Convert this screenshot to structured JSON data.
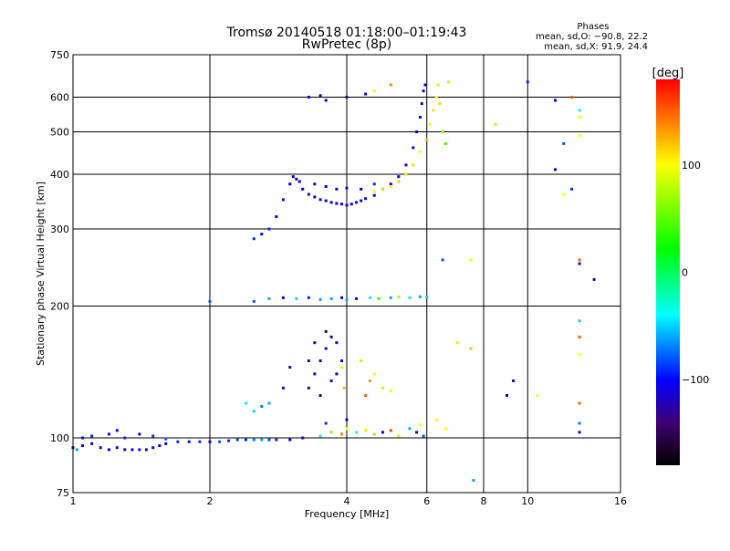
{
  "chart_data": {
    "type": "scatter",
    "title": "Tromsø 20140518 01:18:00–01:19:43",
    "subtitle": "RwPretec (8p)",
    "stats": {
      "heading": "Phases",
      "o_mode": "mean, sd,O: −90.8, 22.2",
      "x_mode": "mean, sd,X:  91.9, 24.4"
    },
    "xlabel": "Frequency [MHz]",
    "ylabel": "Stationary phase Virtual Height [km]",
    "xscale": "log",
    "yscale": "log",
    "xlim": [
      1,
      16
    ],
    "ylim": [
      75,
      750
    ],
    "xticks": [
      1,
      2,
      4,
      6,
      8,
      10,
      16
    ],
    "yticks": [
      75,
      100,
      200,
      300,
      400,
      500,
      600,
      750
    ],
    "xgrid": [
      2,
      4,
      6,
      8,
      10
    ],
    "ygrid": [
      100,
      200,
      300,
      400,
      500,
      600
    ],
    "colorbar": {
      "label": "[deg]",
      "range": [
        -180,
        180
      ],
      "ticks": [
        100,
        0,
        -100
      ]
    },
    "point_fields": [
      "frequency_mhz",
      "height_km",
      "phase_deg"
    ],
    "points": [
      [
        1.0,
        95,
        -110
      ],
      [
        1.02,
        94,
        -60
      ],
      [
        1.05,
        96,
        -110
      ],
      [
        1.1,
        97,
        -110
      ],
      [
        1.15,
        95,
        -110
      ],
      [
        1.2,
        94,
        -110
      ],
      [
        1.25,
        95,
        -110
      ],
      [
        1.3,
        94,
        -110
      ],
      [
        1.35,
        94,
        -110
      ],
      [
        1.4,
        94,
        -110
      ],
      [
        1.45,
        94,
        -110
      ],
      [
        1.5,
        95,
        -110
      ],
      [
        1.55,
        96,
        -100
      ],
      [
        1.6,
        97,
        -100
      ],
      [
        1.7,
        98,
        -90
      ],
      [
        1.8,
        98,
        -100
      ],
      [
        1.9,
        98,
        -90
      ],
      [
        2.0,
        98,
        -100
      ],
      [
        2.1,
        98,
        -80
      ],
      [
        2.2,
        98.5,
        -90
      ],
      [
        2.3,
        99,
        -80
      ],
      [
        2.4,
        99,
        -90
      ],
      [
        2.5,
        99,
        -70
      ],
      [
        2.6,
        99,
        -60
      ],
      [
        2.7,
        99,
        -80
      ],
      [
        2.8,
        99,
        -90
      ],
      [
        3.0,
        99,
        -100
      ],
      [
        1.05,
        100,
        -100
      ],
      [
        1.1,
        101,
        -90
      ],
      [
        1.2,
        102,
        -100
      ],
      [
        1.25,
        104,
        -110
      ],
      [
        1.3,
        100,
        -90
      ],
      [
        1.4,
        102,
        -100
      ],
      [
        1.5,
        101,
        -90
      ],
      [
        1.6,
        99.5,
        -80
      ],
      [
        3.2,
        100,
        -100
      ],
      [
        3.5,
        101,
        -30
      ],
      [
        3.7,
        103,
        60
      ],
      [
        3.9,
        102,
        140
      ],
      [
        4.0,
        105,
        100
      ],
      [
        4.2,
        103,
        -40
      ],
      [
        4.4,
        104,
        90
      ],
      [
        4.6,
        102,
        120
      ],
      [
        4.8,
        103,
        -100
      ],
      [
        5.0,
        104,
        160
      ],
      [
        5.2,
        101,
        80
      ],
      [
        5.5,
        105,
        -60
      ],
      [
        5.7,
        103,
        -120
      ],
      [
        5.8,
        107,
        100
      ],
      [
        5.9,
        101,
        -80
      ],
      [
        3.6,
        108,
        -90
      ],
      [
        4.0,
        110,
        -110
      ],
      [
        2.0,
        205,
        -80
      ],
      [
        2.5,
        205,
        -80
      ],
      [
        2.7,
        208,
        -60
      ],
      [
        2.9,
        209,
        -100
      ],
      [
        3.1,
        208,
        -50
      ],
      [
        3.3,
        209,
        -90
      ],
      [
        3.5,
        207,
        -60
      ],
      [
        3.7,
        208,
        -60
      ],
      [
        3.9,
        209,
        -110
      ],
      [
        4.0,
        207,
        -60
      ],
      [
        4.2,
        208,
        -100
      ],
      [
        4.5,
        209,
        -30
      ],
      [
        4.7,
        208,
        40
      ],
      [
        5.0,
        209,
        -60
      ],
      [
        5.2,
        210,
        80
      ],
      [
        5.5,
        209,
        -40
      ],
      [
        5.8,
        210,
        -60
      ],
      [
        6.0,
        210,
        -50
      ],
      [
        3.3,
        130,
        -130
      ],
      [
        3.4,
        140,
        -120
      ],
      [
        3.5,
        150,
        -130
      ],
      [
        3.6,
        160,
        -125
      ],
      [
        3.7,
        170,
        -130
      ],
      [
        3.8,
        165,
        -120
      ],
      [
        3.9,
        150,
        -110
      ],
      [
        3.5,
        125,
        -130
      ],
      [
        3.7,
        135,
        -125
      ],
      [
        3.8,
        140,
        -110
      ],
      [
        3.9,
        145,
        90
      ],
      [
        3.6,
        175,
        -140
      ],
      [
        3.3,
        150,
        -135
      ],
      [
        3.4,
        165,
        -130
      ],
      [
        3.0,
        145,
        -130
      ],
      [
        2.9,
        130,
        -110
      ],
      [
        2.7,
        120,
        -60
      ],
      [
        2.5,
        115,
        -50
      ],
      [
        2.4,
        120,
        -40
      ],
      [
        2.6,
        118,
        -70
      ],
      [
        3.95,
        130,
        120
      ],
      [
        4.3,
        150,
        80
      ],
      [
        4.6,
        140,
        100
      ],
      [
        4.5,
        135,
        130
      ],
      [
        4.4,
        125,
        150
      ],
      [
        4.8,
        130,
        110
      ],
      [
        5.0,
        128,
        90
      ],
      [
        2.5,
        285,
        -90
      ],
      [
        2.6,
        292,
        -100
      ],
      [
        2.7,
        300,
        -90
      ],
      [
        2.8,
        320,
        -100
      ],
      [
        2.9,
        350,
        -110
      ],
      [
        3.0,
        380,
        -110
      ],
      [
        3.05,
        395,
        -120
      ],
      [
        3.1,
        390,
        -110
      ],
      [
        3.15,
        385,
        -100
      ],
      [
        3.2,
        370,
        -110
      ],
      [
        3.3,
        360,
        -110
      ],
      [
        3.4,
        355,
        -105
      ],
      [
        3.5,
        350,
        -100
      ],
      [
        3.6,
        348,
        -110
      ],
      [
        3.7,
        345,
        -100
      ],
      [
        3.8,
        343,
        -110
      ],
      [
        3.9,
        342,
        -100
      ],
      [
        4.0,
        340,
        -110
      ],
      [
        4.1,
        342,
        -100
      ],
      [
        4.2,
        345,
        -110
      ],
      [
        4.3,
        348,
        -100
      ],
      [
        4.4,
        352,
        -110
      ],
      [
        4.6,
        358,
        -100
      ],
      [
        4.8,
        370,
        -100
      ],
      [
        5.0,
        380,
        -110
      ],
      [
        5.2,
        395,
        -100
      ],
      [
        5.4,
        420,
        -110
      ],
      [
        5.6,
        460,
        -100
      ],
      [
        5.7,
        500,
        -110
      ],
      [
        5.8,
        540,
        -100
      ],
      [
        5.85,
        580,
        -110
      ],
      [
        5.9,
        620,
        -100
      ],
      [
        5.95,
        640,
        -110
      ],
      [
        3.4,
        380,
        -110
      ],
      [
        3.6,
        375,
        -100
      ],
      [
        3.8,
        370,
        -110
      ],
      [
        4.0,
        372,
        -100
      ],
      [
        4.3,
        370,
        -110
      ],
      [
        4.6,
        380,
        -90
      ],
      [
        4.6,
        365,
        100
      ],
      [
        4.8,
        370,
        80
      ],
      [
        5.0,
        375,
        100
      ],
      [
        5.2,
        385,
        120
      ],
      [
        5.4,
        400,
        90
      ],
      [
        5.6,
        420,
        110
      ],
      [
        5.8,
        450,
        100
      ],
      [
        6.0,
        480,
        120
      ],
      [
        6.1,
        520,
        100
      ],
      [
        6.2,
        560,
        110
      ],
      [
        6.3,
        600,
        100
      ],
      [
        6.35,
        640,
        90
      ],
      [
        6.4,
        580,
        80
      ],
      [
        6.5,
        500,
        60
      ],
      [
        6.6,
        470,
        40
      ],
      [
        3.3,
        600,
        -100
      ],
      [
        3.5,
        605,
        -120
      ],
      [
        3.6,
        590,
        -100
      ],
      [
        4.0,
        600,
        -140
      ],
      [
        4.4,
        610,
        -100
      ],
      [
        4.6,
        620,
        100
      ],
      [
        5.0,
        640,
        140
      ],
      [
        7.5,
        255,
        100
      ],
      [
        6.5,
        255,
        -80
      ],
      [
        7.0,
        165,
        90
      ],
      [
        7.5,
        160,
        120
      ],
      [
        6.3,
        110,
        100
      ],
      [
        6.6,
        105,
        100
      ],
      [
        7.6,
        80,
        -60
      ],
      [
        9.3,
        135,
        -120
      ],
      [
        9.0,
        125,
        -110
      ],
      [
        10.5,
        125,
        100
      ],
      [
        11.5,
        590,
        -100
      ],
      [
        12.5,
        600,
        150
      ],
      [
        13.0,
        560,
        -40
      ],
      [
        13.0,
        540,
        100
      ],
      [
        12.0,
        470,
        -80
      ],
      [
        11.5,
        410,
        -100
      ],
      [
        12.0,
        360,
        100
      ],
      [
        13.0,
        490,
        100
      ],
      [
        12.5,
        370,
        -90
      ],
      [
        13.0,
        255,
        150
      ],
      [
        13.0,
        250,
        -110
      ],
      [
        14.0,
        230,
        -130
      ],
      [
        13.0,
        185,
        -50
      ],
      [
        13.0,
        170,
        150
      ],
      [
        13.0,
        155,
        100
      ],
      [
        13.0,
        120,
        150
      ],
      [
        13.0,
        108,
        -70
      ],
      [
        13.0,
        103,
        -120
      ],
      [
        10.0,
        650,
        -90
      ],
      [
        8.5,
        520,
        80
      ],
      [
        6.7,
        650,
        110
      ]
    ]
  }
}
